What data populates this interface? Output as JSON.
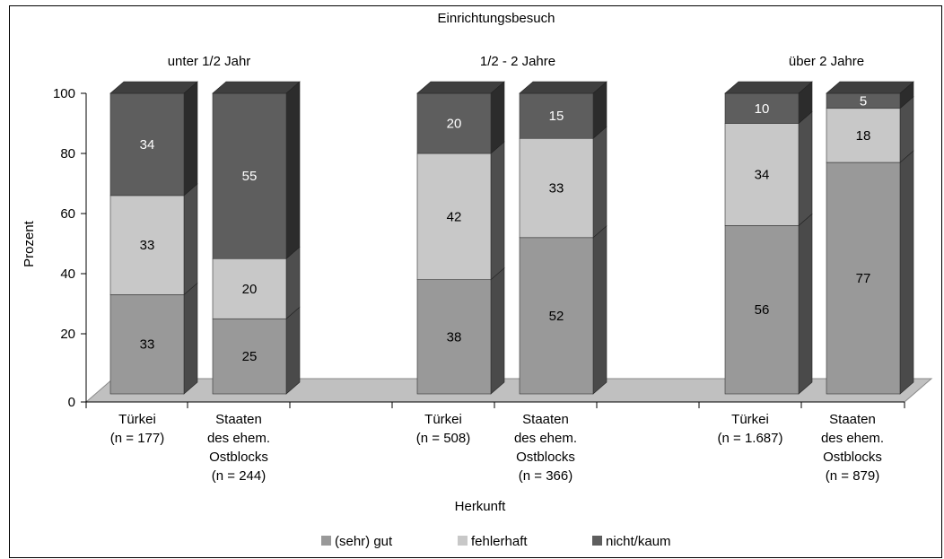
{
  "chart_data": {
    "type": "bar",
    "stacked": true,
    "title": "Einrichtungsbesuch",
    "xlabel": "Herkunft",
    "ylabel": "Prozent",
    "ylim": [
      0,
      100
    ],
    "yticks": [
      0,
      20,
      40,
      60,
      80,
      100
    ],
    "groups": [
      "unter 1/2 Jahr",
      "1/2 - 2 Jahre",
      "über 2 Jahre"
    ],
    "categories": [
      [
        "Türkei",
        "(n = 177)"
      ],
      [
        "Staaten",
        "des ehem.",
        "Ostblocks",
        "(n = 244)"
      ],
      [
        "Türkei",
        "(n = 508)"
      ],
      [
        "Staaten",
        "des ehem.",
        "Ostblocks",
        "(n = 366)"
      ],
      [
        "Türkei",
        "(n = 1.687)"
      ],
      [
        "Staaten",
        "des ehem.",
        "Ostblocks",
        "(n = 879)"
      ]
    ],
    "group_of_category": [
      0,
      0,
      1,
      1,
      2,
      2
    ],
    "series": [
      {
        "name": "(sehr) gut",
        "color": "#999999",
        "values": [
          33,
          25,
          38,
          52,
          56,
          77
        ]
      },
      {
        "name": "fehlerhaft",
        "color": "#c8c8c8",
        "values": [
          33,
          20,
          42,
          33,
          34,
          18
        ]
      },
      {
        "name": "nicht/kaum",
        "color": "#5e5e5e",
        "values": [
          34,
          55,
          20,
          15,
          10,
          5
        ]
      }
    ],
    "legend_position": "bottom",
    "grid": false
  }
}
